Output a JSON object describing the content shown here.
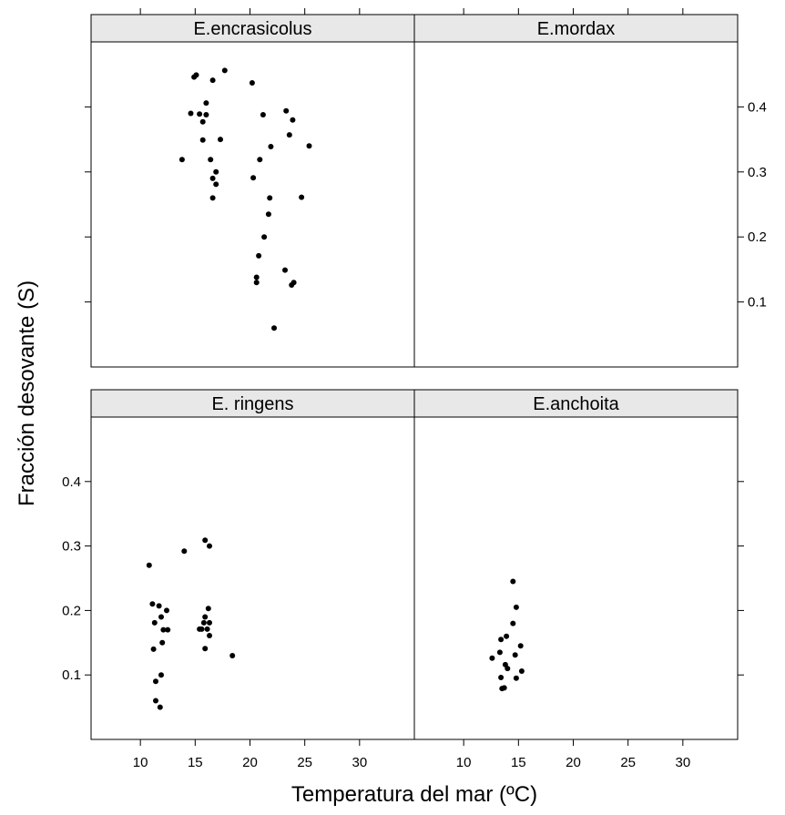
{
  "chart_data": {
    "type": "scatter",
    "layout": "lattice 2x2 panels with shared axes",
    "xlabel": "Temperatura del mar (ºC)",
    "ylabel": "Fracción desovante (S)",
    "xlim": [
      5.5,
      35
    ],
    "ylim": [
      0,
      0.5
    ],
    "x_ticks": [
      10,
      15,
      20,
      25,
      30
    ],
    "y_ticks": [
      0.1,
      0.2,
      0.3,
      0.4
    ],
    "y_tick_labels": [
      "0.1",
      "0.2",
      "0.3",
      "0.4"
    ],
    "grid": false,
    "colors": {
      "points": "#000000",
      "strip": "#e8e8e8"
    },
    "panels": [
      {
        "name": "E.encrasicolus",
        "position": "top-left",
        "points": [
          [
            14.9,
            0.446
          ],
          [
            15.1,
            0.449
          ],
          [
            16.6,
            0.441
          ],
          [
            17.7,
            0.456
          ],
          [
            20.2,
            0.437
          ],
          [
            16.0,
            0.406
          ],
          [
            14.6,
            0.39
          ],
          [
            15.4,
            0.389
          ],
          [
            16.0,
            0.388
          ],
          [
            15.7,
            0.377
          ],
          [
            23.3,
            0.394
          ],
          [
            21.2,
            0.388
          ],
          [
            23.9,
            0.38
          ],
          [
            23.6,
            0.357
          ],
          [
            15.7,
            0.349
          ],
          [
            17.3,
            0.35
          ],
          [
            21.9,
            0.339
          ],
          [
            25.4,
            0.34
          ],
          [
            13.8,
            0.319
          ],
          [
            16.4,
            0.319
          ],
          [
            20.9,
            0.319
          ],
          [
            16.9,
            0.3
          ],
          [
            16.6,
            0.29
          ],
          [
            20.3,
            0.291
          ],
          [
            16.9,
            0.281
          ],
          [
            16.6,
            0.26
          ],
          [
            21.8,
            0.26
          ],
          [
            24.7,
            0.261
          ],
          [
            21.7,
            0.235
          ],
          [
            21.3,
            0.2
          ],
          [
            20.8,
            0.171
          ],
          [
            23.2,
            0.149
          ],
          [
            20.6,
            0.138
          ],
          [
            20.6,
            0.13
          ],
          [
            24.0,
            0.13
          ],
          [
            23.8,
            0.126
          ],
          [
            22.2,
            0.06
          ]
        ]
      },
      {
        "name": "E.mordax",
        "position": "top-right",
        "points": []
      },
      {
        "name": "E. ringens",
        "position": "bottom-left",
        "points": [
          [
            10.8,
            0.27
          ],
          [
            11.1,
            0.21
          ],
          [
            11.7,
            0.207
          ],
          [
            11.9,
            0.19
          ],
          [
            12.4,
            0.2
          ],
          [
            11.3,
            0.181
          ],
          [
            12.0,
            0.15
          ],
          [
            12.1,
            0.17
          ],
          [
            12.5,
            0.17
          ],
          [
            11.2,
            0.14
          ],
          [
            11.9,
            0.1
          ],
          [
            11.4,
            0.09
          ],
          [
            11.4,
            0.06
          ],
          [
            11.8,
            0.05
          ],
          [
            14.0,
            0.292
          ],
          [
            15.9,
            0.309
          ],
          [
            16.3,
            0.3
          ],
          [
            16.2,
            0.203
          ],
          [
            15.9,
            0.19
          ],
          [
            15.8,
            0.181
          ],
          [
            16.3,
            0.181
          ],
          [
            15.6,
            0.171
          ],
          [
            16.1,
            0.171
          ],
          [
            15.4,
            0.171
          ],
          [
            16.3,
            0.161
          ],
          [
            15.9,
            0.141
          ],
          [
            18.4,
            0.13
          ]
        ]
      },
      {
        "name": "E.anchoita",
        "position": "bottom-right",
        "points": [
          [
            14.5,
            0.245
          ],
          [
            14.8,
            0.205
          ],
          [
            14.5,
            0.18
          ],
          [
            13.9,
            0.16
          ],
          [
            15.2,
            0.145
          ],
          [
            13.4,
            0.155
          ],
          [
            12.6,
            0.126
          ],
          [
            13.3,
            0.135
          ],
          [
            14.7,
            0.131
          ],
          [
            13.8,
            0.116
          ],
          [
            14.0,
            0.11
          ],
          [
            15.3,
            0.106
          ],
          [
            13.4,
            0.096
          ],
          [
            14.8,
            0.095
          ],
          [
            13.5,
            0.079
          ],
          [
            13.7,
            0.08
          ]
        ]
      }
    ]
  }
}
